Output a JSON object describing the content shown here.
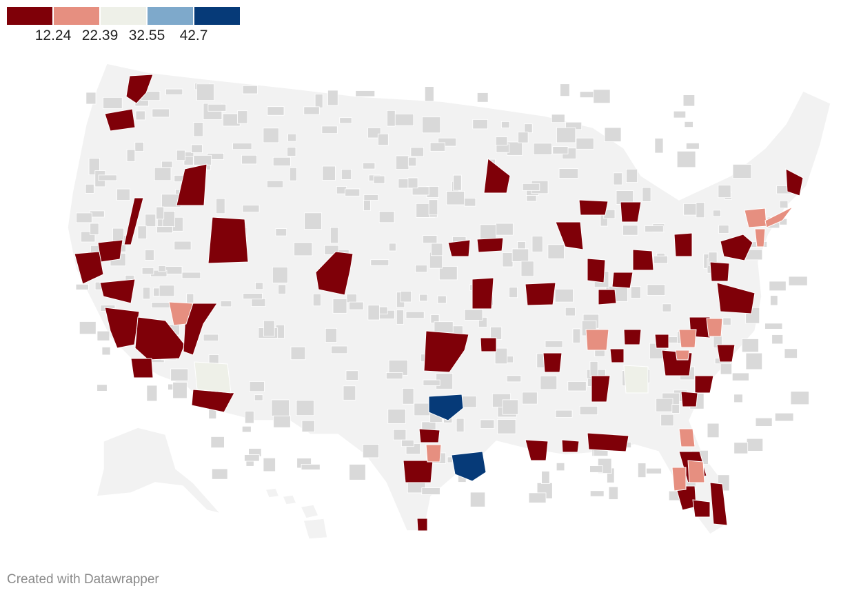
{
  "legend": {
    "colors": [
      "#7f0008",
      "#e68f80",
      "#eef0e8",
      "#7ea9cb",
      "#063a78"
    ],
    "ticks": [
      "12.24",
      "22.39",
      "32.55",
      "42.7"
    ]
  },
  "map": {
    "base_colors": {
      "land": "#f2f2f2",
      "county": "#d9d9d9",
      "border": "#ffffff"
    }
  },
  "footer": {
    "credit": "Created with Datawrapper"
  }
}
